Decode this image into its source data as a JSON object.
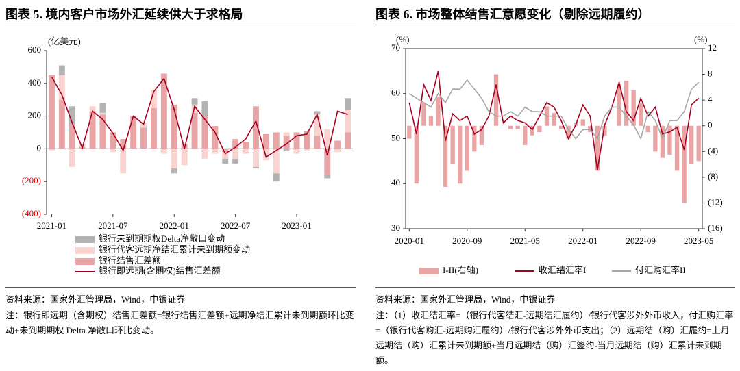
{
  "chart_data": [
    {
      "type": "bar",
      "title": "图表 5. 境内客户市场外汇延续供大于求格局",
      "y_unit": "(亿美元)",
      "categories": [
        "2021-01",
        null,
        null,
        null,
        null,
        null,
        "2021-07",
        null,
        null,
        null,
        null,
        null,
        "2022-01",
        null,
        null,
        null,
        null,
        null,
        "2022-07",
        null,
        null,
        null,
        null,
        null,
        "2023-01",
        null,
        null,
        null,
        null,
        null
      ],
      "ylim": [
        -400,
        600
      ],
      "yticks": [
        600,
        400,
        200,
        0,
        {
          "value": -200,
          "label": "(200)"
        },
        {
          "value": -400,
          "label": "(400)"
        }
      ],
      "negative_tick_color": "#e00000",
      "frame": false,
      "legend": "bottom",
      "series": [
        {
          "name": "银行未到期期权Delta净敞口变动",
          "type": "bar",
          "color": "#b3b3b3",
          "values": [
            0,
            60,
            110,
            0,
            0,
            60,
            0,
            0,
            0,
            0,
            0,
            0,
            -30,
            0,
            40,
            90,
            0,
            -30,
            -30,
            0,
            -10,
            0,
            -50,
            -10,
            0,
            10,
            20,
            -20,
            0,
            70
          ]
        },
        {
          "name": "银行代客远期净结汇累计未到期额变动",
          "type": "bar",
          "color": "#f9d3cf",
          "values": [
            -10,
            150,
            -110,
            20,
            30,
            10,
            -20,
            -150,
            0,
            30,
            110,
            -30,
            -120,
            -100,
            50,
            -60,
            -30,
            -40,
            -60,
            -30,
            -110,
            -70,
            -150,
            20,
            -30,
            -10,
            130,
            120,
            -20,
            140
          ]
        },
        {
          "name": "银行结售汇差额",
          "type": "bar",
          "color": "#e9a5a5",
          "values": [
            450,
            300,
            150,
            10,
            230,
            210,
            100,
            60,
            200,
            130,
            250,
            460,
            270,
            30,
            220,
            200,
            140,
            -20,
            60,
            40,
            260,
            90,
            100,
            80,
            100,
            100,
            80,
            -160,
            50,
            100
          ]
        },
        {
          "name": "银行即远期(含期权)结售汇差额",
          "type": "line",
          "color": "#a50021",
          "values": [
            440,
            330,
            160,
            5,
            230,
            180,
            95,
            -10,
            200,
            150,
            350,
            430,
            240,
            0,
            260,
            180,
            100,
            -30,
            10,
            60,
            170,
            -50,
            -10,
            30,
            80,
            90,
            210,
            -40,
            230,
            210
          ]
        }
      ],
      "source": "资料来源：国家外汇管理局，Wind，中银证券",
      "note": "注：银行即远期（含期权）结售汇差额=银行结售汇差额+远期净结汇累计未到期额环比变动+未到期期权 Delta 净敞口环比变动。"
    },
    {
      "type": "bar",
      "title": "图表 6. 市场整体结售汇意愿变化（剔除远期履约）",
      "y_unit": "(%)",
      "y2_unit": "(%)",
      "categories": [
        "2020-01",
        null,
        null,
        null,
        null,
        null,
        null,
        null,
        "2020-09",
        null,
        null,
        null,
        null,
        null,
        null,
        null,
        "2021-05",
        null,
        null,
        null,
        null,
        null,
        null,
        null,
        "2022-01",
        null,
        null,
        null,
        null,
        null,
        null,
        null,
        "2022-09",
        null,
        null,
        null,
        null,
        null,
        null,
        null,
        "2023-05"
      ],
      "ylim": [
        30,
        70
      ],
      "yticks": [
        30,
        40,
        50,
        60,
        70
      ],
      "y2lim": [
        -16,
        12
      ],
      "y2ticks": [
        12,
        8,
        4,
        0,
        {
          "value": -4,
          "label": "(4)"
        },
        {
          "value": -8,
          "label": "(8)"
        },
        {
          "value": -12,
          "label": "(12)"
        },
        {
          "value": -16,
          "label": "(16)"
        }
      ],
      "negative_tick_color": "#000000",
      "frame": true,
      "legend": "bottom",
      "series": [
        {
          "name": "I-II(右轴)",
          "type": "bar",
          "axis": "y2",
          "color": "#eba4a4",
          "values": [
            -2,
            -9,
            3.5,
            1.5,
            4.5,
            -9.5,
            -6,
            -9,
            -7,
            -4,
            -3,
            0,
            8,
            0,
            -0.5,
            -0.5,
            -3,
            -1.5,
            -1,
            3,
            2,
            -0.5,
            -2,
            0.5,
            1,
            -1,
            -7,
            -1.5,
            0,
            6.5,
            7,
            5.5,
            3.5,
            -1,
            -4,
            -5,
            -4.5,
            -7,
            -12,
            -6,
            -5.5
          ]
        },
        {
          "name": "收汇结汇率I",
          "type": "line",
          "color": "#a50021",
          "values": [
            58,
            51,
            62,
            58.5,
            65,
            49.5,
            55.5,
            54,
            55,
            51,
            52,
            55,
            62,
            53.5,
            55,
            54,
            53.5,
            52,
            55,
            58,
            57,
            54,
            50,
            53,
            57.5,
            55,
            43,
            53,
            57,
            62.5,
            56,
            54,
            59,
            55,
            57,
            51,
            51.5,
            52.5,
            47.5,
            57.5,
            59
          ]
        },
        {
          "name": "付汇购汇率II",
          "type": "line",
          "color": "#a6a6a6",
          "values": [
            60,
            59,
            58,
            57,
            60,
            58,
            61,
            61,
            63,
            61,
            59,
            56,
            55,
            55,
            56,
            55,
            57,
            56,
            56,
            55,
            55,
            55,
            52,
            50,
            52,
            52,
            50,
            55,
            57,
            57,
            55,
            53,
            50,
            56,
            54,
            50,
            54,
            54,
            56,
            61,
            62.5
          ]
        }
      ],
      "source": "资料来源：国家外汇管理局，Wind，中银证券",
      "note": "注：（1）收汇结汇率=（银行代客结汇-远期结汇履约）/银行代客涉外外币收入，付汇购汇率=（银行代客购汇-远期购汇履约）/银行代客涉外外币支出；（2）远期结（购）汇履约=上月远期结（购）汇累计未到期额+当月远期结（购）汇签约-当月远期结（购）汇累计未到期额。"
    }
  ]
}
